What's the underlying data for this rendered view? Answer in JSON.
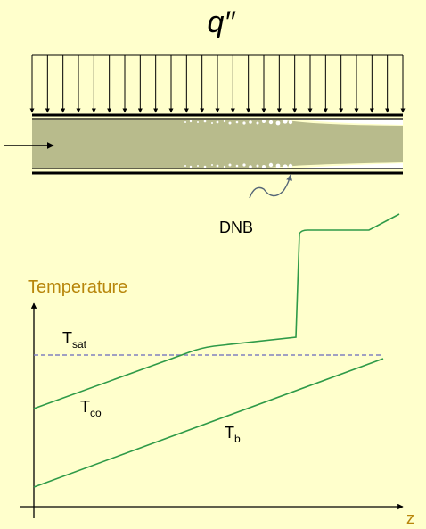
{
  "heat_flux_label": "q″",
  "dnb_label": "DNB",
  "y_axis_label": "Temperature",
  "x_axis_label": "z",
  "curves": {
    "t_sat": {
      "main": "T",
      "sub": "sat"
    },
    "t_co": {
      "main": "T",
      "sub": "co"
    },
    "t_b": {
      "main": "T",
      "sub": "b"
    }
  },
  "colors": {
    "background": "#ffffcc",
    "fluid": "#b8bb8c",
    "curve": "#2e9a48",
    "t_sat_line": "#8080c0",
    "y_axis_label": "#b8860b",
    "x_axis_label": "#b8860b"
  }
}
